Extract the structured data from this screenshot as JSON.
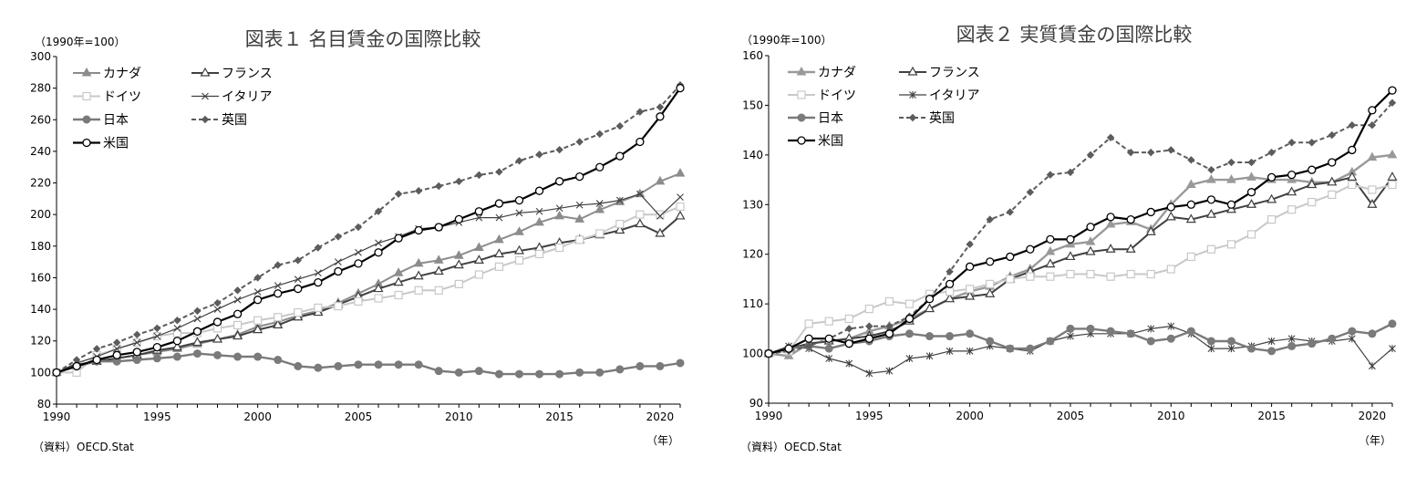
{
  "chart_data": [
    {
      "type": "line",
      "title": "図表１ 名目賃金の国際比較",
      "unit_label": "（1990年=100）",
      "source_label": "（資料）OECD.Stat",
      "xlabel": "（年）",
      "ylim": [
        80,
        300
      ],
      "yticks": [
        80,
        100,
        120,
        140,
        160,
        180,
        200,
        220,
        240,
        260,
        280,
        300
      ],
      "xticks": [
        1990,
        1995,
        2000,
        2005,
        2010,
        2015,
        2020
      ],
      "x": [
        1990,
        1991,
        1992,
        1993,
        1994,
        1995,
        1996,
        1997,
        1998,
        1999,
        2000,
        2001,
        2002,
        2003,
        2004,
        2005,
        2006,
        2007,
        2008,
        2009,
        2010,
        2011,
        2012,
        2013,
        2014,
        2015,
        2016,
        2017,
        2018,
        2019,
        2020,
        2021
      ],
      "series": [
        {
          "name": "カナダ",
          "color": "#8c8c8c",
          "width": 2,
          "dash": "",
          "marker": "triangle",
          "values": [
            100,
            104,
            107,
            109,
            111,
            113,
            115,
            118,
            121,
            124,
            129,
            132,
            136,
            139,
            144,
            150,
            156,
            163,
            169,
            171,
            174,
            179,
            184,
            189,
            195,
            199,
            197,
            203,
            208,
            213,
            221,
            226
          ]
        },
        {
          "name": "フランス",
          "color": "#404040",
          "width": 2,
          "dash": "",
          "marker": "triangle-open",
          "values": [
            100,
            105,
            107,
            109,
            111,
            114,
            116,
            119,
            121,
            123,
            127,
            130,
            135,
            138,
            143,
            148,
            153,
            157,
            161,
            164,
            168,
            171,
            175,
            177,
            179,
            182,
            184,
            187,
            190,
            194,
            188,
            199
          ]
        },
        {
          "name": "ドイツ",
          "color": "#c8c8c8",
          "width": 2,
          "dash": "",
          "marker": "square-open",
          "values": [
            100,
            100,
            111,
            115,
            119,
            123,
            125,
            125,
            128,
            130,
            133,
            135,
            138,
            141,
            142,
            145,
            147,
            149,
            152,
            152,
            156,
            162,
            167,
            171,
            175,
            179,
            184,
            188,
            194,
            200,
            200,
            205
          ]
        },
        {
          "name": "イタリア",
          "color": "#404040",
          "width": 1.2,
          "dash": "",
          "marker": "cross",
          "values": [
            100,
            106,
            110,
            115,
            119,
            123,
            128,
            134,
            140,
            146,
            151,
            155,
            159,
            163,
            170,
            176,
            182,
            186,
            191,
            192,
            195,
            198,
            198,
            201,
            202,
            204,
            206,
            207,
            209,
            213,
            199,
            211
          ]
        },
        {
          "name": "日本",
          "color": "#7a7a7a",
          "width": 2.4,
          "dash": "",
          "marker": "circle",
          "values": [
            100,
            104,
            107,
            107,
            108,
            109,
            110,
            112,
            111,
            110,
            110,
            108,
            104,
            103,
            104,
            105,
            105,
            105,
            105,
            101,
            100,
            101,
            99,
            99,
            99,
            99,
            100,
            100,
            102,
            104,
            104,
            106
          ]
        },
        {
          "name": "英国",
          "color": "#5c5c5c",
          "width": 2,
          "dash": "5,3",
          "marker": "diamond",
          "values": [
            100,
            108,
            115,
            119,
            124,
            128,
            133,
            139,
            144,
            152,
            160,
            168,
            171,
            179,
            186,
            192,
            202,
            213,
            215,
            218,
            221,
            225,
            227,
            234,
            238,
            241,
            246,
            251,
            256,
            265,
            268,
            282
          ]
        },
        {
          "name": "米国",
          "color": "#000000",
          "width": 2.2,
          "dash": "",
          "marker": "circle-open",
          "values": [
            100,
            104,
            108,
            111,
            113,
            116,
            120,
            126,
            132,
            137,
            146,
            150,
            153,
            157,
            164,
            169,
            176,
            185,
            190,
            192,
            197,
            202,
            207,
            209,
            215,
            221,
            224,
            230,
            237,
            246,
            262,
            280
          ]
        }
      ]
    },
    {
      "type": "line",
      "title": "図表２ 実質賃金の国際比較",
      "unit_label": "（1990年=100）",
      "source_label": "（資料）OECD.Stat",
      "xlabel": "（年）",
      "ylim": [
        90,
        160
      ],
      "yticks": [
        90,
        100,
        110,
        120,
        130,
        140,
        150,
        160
      ],
      "xticks": [
        1990,
        1995,
        2000,
        2005,
        2010,
        2015,
        2020
      ],
      "x": [
        1990,
        1991,
        1992,
        1993,
        1994,
        1995,
        1996,
        1997,
        1998,
        1999,
        2000,
        2001,
        2002,
        2003,
        2004,
        2005,
        2006,
        2007,
        2008,
        2009,
        2010,
        2011,
        2012,
        2013,
        2014,
        2015,
        2016,
        2017,
        2018,
        2019,
        2020,
        2021
      ],
      "series": [
        {
          "name": "カナダ",
          "color": "#999999",
          "width": 2.4,
          "dash": "",
          "marker": "triangle",
          "values": [
            100,
            99.5,
            102,
            102.5,
            103,
            104.5,
            105.5,
            107,
            109,
            111,
            112.5,
            113.5,
            115.5,
            117,
            120.5,
            122,
            122.5,
            126,
            126.5,
            125,
            130,
            134,
            135,
            135,
            135.5,
            135,
            135,
            134.5,
            134.5,
            136.5,
            139.5,
            140
          ]
        },
        {
          "name": "フランス",
          "color": "#404040",
          "width": 2,
          "dash": "",
          "marker": "triangle-open",
          "values": [
            100,
            101,
            102,
            102.5,
            103,
            103.5,
            104.5,
            106.5,
            109,
            111,
            111.5,
            112,
            115,
            116.5,
            118,
            119.5,
            120.5,
            121,
            121,
            124.5,
            127.5,
            127,
            128,
            129,
            130,
            131,
            132.5,
            134,
            134.5,
            135.5,
            130,
            135.5
          ]
        },
        {
          "name": "ドイツ",
          "color": "#c8c8c8",
          "width": 2,
          "dash": "",
          "marker": "square-open",
          "values": [
            100,
            100.5,
            106,
            106.5,
            107,
            109,
            110.5,
            110,
            112,
            112.5,
            113,
            114,
            115,
            115.5,
            115.5,
            116,
            116,
            115.5,
            116,
            116,
            117,
            119.5,
            121,
            122,
            124,
            127,
            129,
            130.5,
            132,
            134,
            133,
            134
          ]
        },
        {
          "name": "イタリア",
          "color": "#404040",
          "width": 1.2,
          "dash": "",
          "marker": "asterisk",
          "values": [
            100,
            101.5,
            101,
            99,
            98,
            96,
            96.5,
            99,
            99.5,
            100.5,
            100.5,
            101.5,
            101,
            100.5,
            102.5,
            103.5,
            104,
            104,
            104,
            105,
            105.5,
            104,
            101,
            101,
            101.5,
            102.5,
            103,
            102.5,
            102.5,
            103,
            97.5,
            101
          ]
        },
        {
          "name": "日本",
          "color": "#7a7a7a",
          "width": 2.4,
          "dash": "",
          "marker": "circle",
          "values": [
            100,
            101,
            101.5,
            101,
            102,
            102.5,
            103.5,
            104,
            103.5,
            103.5,
            104,
            102.5,
            101,
            101,
            102.5,
            105,
            105,
            104.5,
            104,
            102.5,
            103,
            104.5,
            102.5,
            102.5,
            101,
            100.5,
            101.5,
            102,
            103,
            104.5,
            104,
            106
          ]
        },
        {
          "name": "英国",
          "color": "#5c5c5c",
          "width": 2,
          "dash": "5,3",
          "marker": "diamond",
          "values": [
            100,
            100.5,
            101.5,
            103,
            105,
            105.5,
            105.5,
            107.5,
            111,
            116.5,
            122,
            127,
            128.5,
            132.5,
            136,
            136.5,
            140,
            143.5,
            140.5,
            140.5,
            141,
            139,
            137,
            138.5,
            138.5,
            140.5,
            142.5,
            142.5,
            144,
            146,
            146,
            150.5
          ]
        },
        {
          "name": "米国",
          "color": "#000000",
          "width": 2.2,
          "dash": "",
          "marker": "circle-open",
          "values": [
            100,
            101,
            103,
            103,
            102,
            103,
            104,
            107,
            111,
            114,
            117.5,
            118.5,
            119.5,
            121,
            123,
            123,
            125.5,
            127.5,
            127,
            128.5,
            129.5,
            130,
            131,
            130,
            132.5,
            135.5,
            136,
            137,
            138.5,
            141,
            149,
            153
          ]
        }
      ]
    }
  ]
}
